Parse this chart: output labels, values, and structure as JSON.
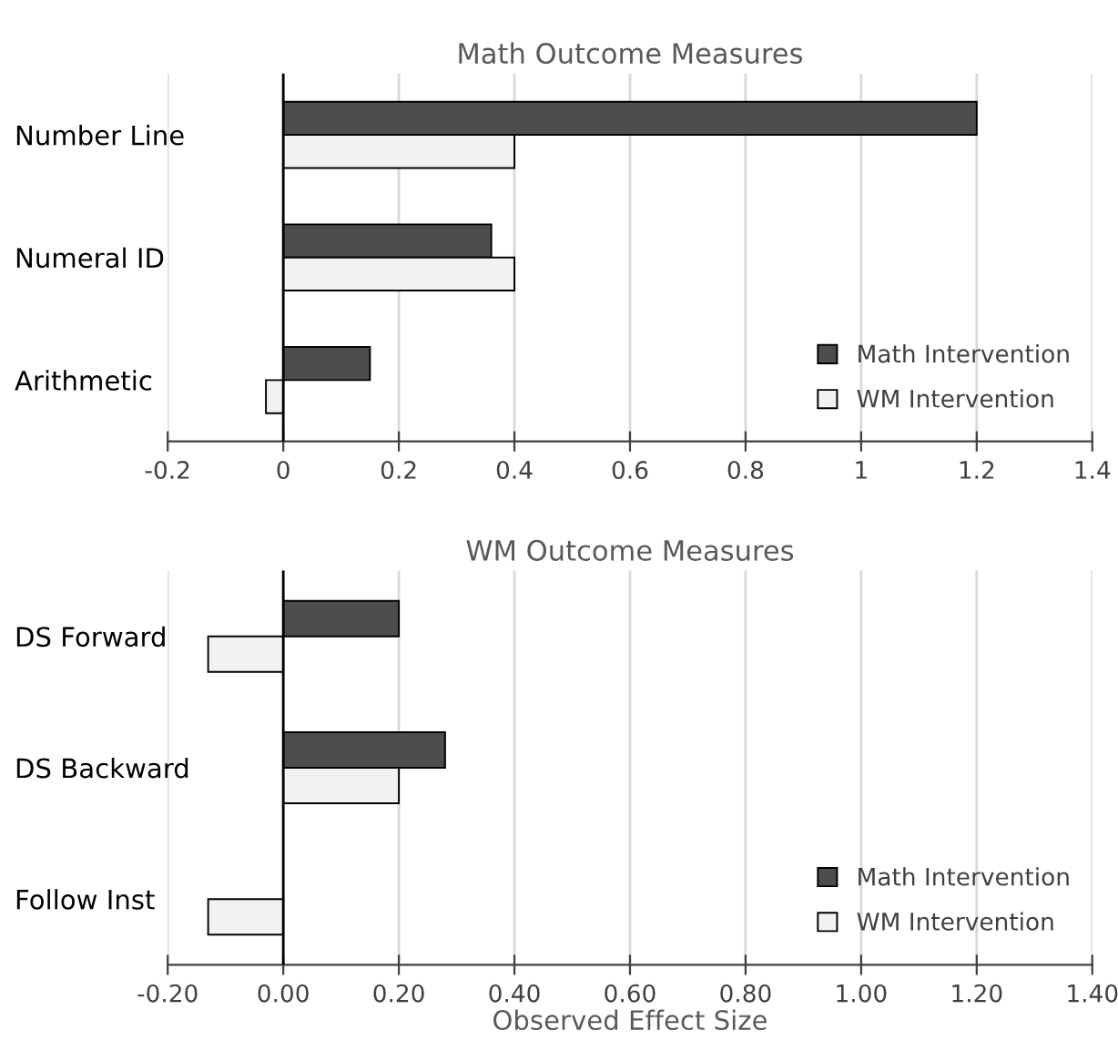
{
  "chart_data": [
    {
      "type": "bar",
      "orientation": "horizontal",
      "title": "Math Outcome Measures",
      "categories": [
        "Number Line",
        "Numeral ID",
        "Arithmetic"
      ],
      "series": [
        {
          "name": "Math Intervention",
          "color": "#4d4d4d",
          "values": [
            1.2,
            0.36,
            0.15
          ]
        },
        {
          "name": "WM Intervention",
          "color": "#f2f2f2",
          "values": [
            0.4,
            0.4,
            -0.03
          ]
        }
      ],
      "xlim": [
        -0.2,
        1.4
      ],
      "xticks": [
        -0.2,
        0,
        0.2,
        0.4,
        0.6,
        0.8,
        1,
        1.2,
        1.4
      ],
      "ref_lines": [
        {
          "axis": "x",
          "value": 0,
          "color": "#000000"
        }
      ],
      "grid": "x",
      "legend": "bottom right"
    },
    {
      "type": "bar",
      "orientation": "horizontal",
      "title": "WM Outcome Measures",
      "xlabel": "Observed Effect Size",
      "categories": [
        "DS Forward",
        "DS Backward",
        "Follow Inst"
      ],
      "series": [
        {
          "name": "Math Intervention",
          "color": "#4d4d4d",
          "values": [
            0.2,
            0.28,
            null
          ]
        },
        {
          "name": "WM Intervention",
          "color": "#f2f2f2",
          "values": [
            -0.13,
            0.2,
            -0.13
          ]
        }
      ],
      "xlim": [
        -0.2,
        1.4
      ],
      "xticks": [
        {
          "value": -0.2,
          "label": "-0.20"
        },
        {
          "value": 0,
          "label": "0.00"
        },
        {
          "value": 0.2,
          "label": "0.20"
        },
        {
          "value": 0.4,
          "label": "0.40"
        },
        {
          "value": 0.6,
          "label": "0.60"
        },
        {
          "value": 0.8,
          "label": "0.80"
        },
        {
          "value": 1.0,
          "label": "1.00"
        },
        {
          "value": 1.2,
          "label": "1.20"
        },
        {
          "value": 1.4,
          "label": "1.40"
        }
      ],
      "ref_lines": [
        {
          "axis": "x",
          "value": 0,
          "color": "#000000"
        }
      ],
      "grid": "x",
      "legend": "bottom right"
    }
  ]
}
